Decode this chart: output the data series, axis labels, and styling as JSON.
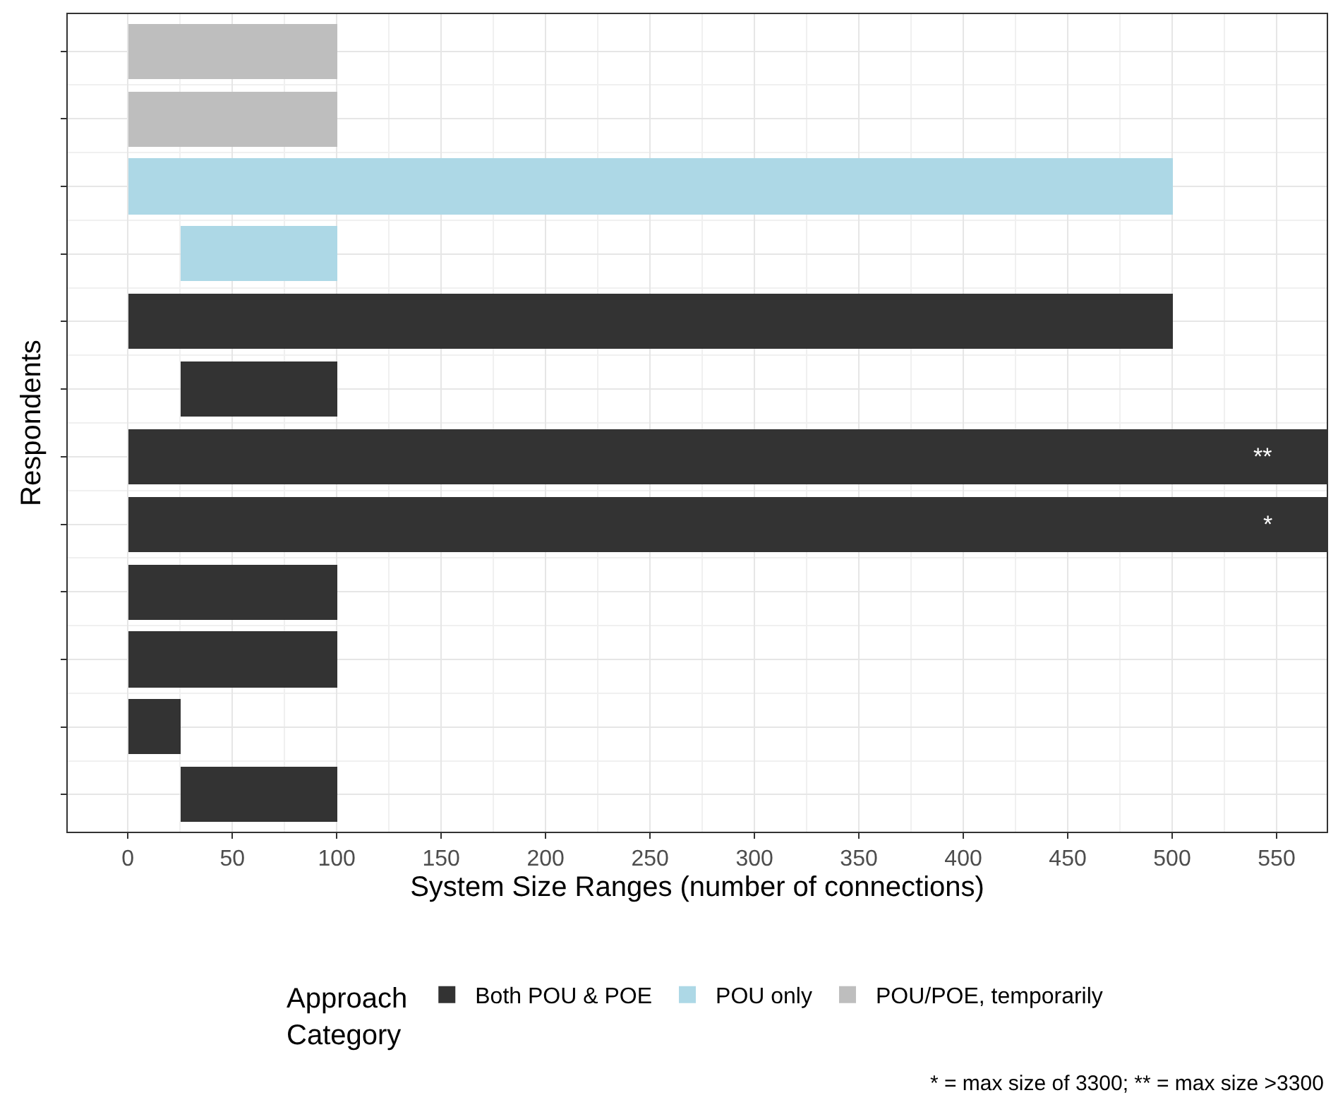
{
  "chart_data": {
    "type": "bar",
    "orientation": "horizontal",
    "xlabel": "System Size Ranges (number of connections)",
    "ylabel": "Respondents",
    "legend_title": "Approach Category",
    "legend": "bottom",
    "grid": true,
    "tick_labels": "x",
    "categories": [
      null,
      null,
      null,
      null,
      null,
      null,
      null,
      null,
      null,
      null,
      null,
      null
    ],
    "xlim": [
      -28.8,
      574
    ],
    "xticks": [
      0,
      50,
      100,
      150,
      200,
      250,
      300,
      350,
      400,
      450,
      500,
      550
    ],
    "series": [
      {
        "name": "Both POU & POE",
        "color": "#333333",
        "values": [
          null,
          null,
          null,
          null,
          500,
          75,
          574,
          574,
          100,
          100,
          25,
          75
        ],
        "base": [
          null,
          null,
          null,
          null,
          0,
          25,
          0,
          0,
          0,
          0,
          0,
          25
        ],
        "value_labels": [
          null,
          null,
          null,
          null,
          null,
          null,
          "**",
          "*",
          null,
          null,
          null,
          null
        ]
      },
      {
        "name": "POU only",
        "color": "#add8e6",
        "values": [
          null,
          null,
          500,
          75,
          null,
          null,
          null,
          null,
          null,
          null,
          null,
          null
        ],
        "base": [
          null,
          null,
          0,
          25,
          null,
          null,
          null,
          null,
          null,
          null,
          null,
          null
        ]
      },
      {
        "name": "POU/POE, temporarily",
        "color": "#bebebe",
        "values": [
          100,
          100,
          null,
          null,
          null,
          null,
          null,
          null,
          null,
          null,
          null,
          null
        ],
        "base": [
          0,
          0,
          null,
          null,
          null,
          null,
          null,
          null,
          null,
          null,
          null,
          null
        ]
      }
    ],
    "annotations": [
      "* = max size of 3300; ** = max size >3300"
    ]
  }
}
